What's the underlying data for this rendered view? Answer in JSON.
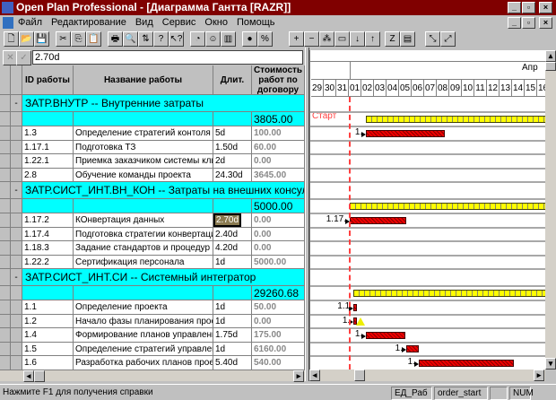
{
  "window": {
    "title": "Open Plan Professional - [Диаграмма Гантта [RAZR]]"
  },
  "menu": [
    "Файл",
    "Редактирование",
    "Вид",
    "Сервис",
    "Окно",
    "Помощь"
  ],
  "toolbar": {
    "icons": [
      "new-icon",
      "open-icon",
      "save-icon",
      "cut-icon",
      "copy-icon",
      "paste-icon",
      "print-icon",
      "print-preview-icon",
      "sort-icon",
      "help-icon",
      "context-help-icon",
      "clock-icon",
      "resource-icon",
      "histogram-icon",
      "progress-icon",
      "percent-icon",
      "add-icon",
      "remove-icon",
      "link-icon",
      "unlink-icon",
      "down-icon",
      "up-icon",
      "bar-style-icon",
      "table-icon",
      "zoom-in-icon",
      "zoom-out-icon"
    ]
  },
  "editbar": {
    "value": "2.70d"
  },
  "columns": {
    "id": "ID работы",
    "name": "Название работы",
    "dur": "Длит.",
    "cost": "Стоимость работ по договору"
  },
  "groups": [
    {
      "title": "ЗАТР.ВНУТР -- Внутренние затраты",
      "total": "3805.00",
      "bar": {
        "start": 2.3,
        "end": 99
      },
      "tasks": [
        {
          "id": "1.3",
          "name": "Определение стратегий контоля и отч",
          "dur": "5d",
          "cost": "100.00",
          "bar": {
            "start": 2.3,
            "end": 8.6
          },
          "label": "1."
        },
        {
          "id": "1.17.1",
          "name": "Подготовка ТЗ",
          "dur": "1.50d",
          "cost": "60.00"
        },
        {
          "id": "1.22.1",
          "name": "Приемка заказчиком системы клиент",
          "dur": "2d",
          "cost": "0.00"
        },
        {
          "id": "2.8",
          "name": "Обучение команды проекта",
          "dur": "24.30d",
          "cost": "3645.00"
        }
      ]
    },
    {
      "title": "ЗАТР.СИСТ_ИНТ.ВН_КОН -- Затраты на внешних консультантов",
      "total": "5000.00",
      "bar": {
        "start": 1.0,
        "end": 99
      },
      "tasks": [
        {
          "id": "1.17.2",
          "name": "КОнвертация данных",
          "dur": "2.70d",
          "cost": "0.00",
          "selected": true,
          "bar": {
            "start": 1.0,
            "end": 5.5
          },
          "label": "1.17."
        },
        {
          "id": "1.17.4",
          "name": "Подготовка стратегии конвертации",
          "dur": "2.40d",
          "cost": "0.00"
        },
        {
          "id": "1.18.3",
          "name": "Задание стандартов  и процедур по д",
          "dur": "4.20d",
          "cost": "0.00"
        },
        {
          "id": "1.22.2",
          "name": "Сертификация персонала",
          "dur": "1d",
          "cost": "5000.00"
        }
      ]
    },
    {
      "title": "ЗАТР.СИСТ_ИНТ.СИ -- Системный интегратор",
      "total": "29260.68",
      "bar": {
        "start": 1.3,
        "end": 99
      },
      "tasks": [
        {
          "id": "1.1",
          "name": "Определение проекта",
          "dur": "1d",
          "cost": "50.00",
          "bar": {
            "start": 1.3,
            "end": 1.6
          },
          "label": "1.1"
        },
        {
          "id": "1.2",
          "name": "Начало фазы планирования проекта",
          "dur": "1d",
          "cost": "0.00",
          "bar": {
            "start": 1.3,
            "end": 1.6
          },
          "milestone": true,
          "label": "1."
        },
        {
          "id": "1.4",
          "name": "Формирование планов управления",
          "dur": "1.75d",
          "cost": "175.00",
          "bar": {
            "start": 2.3,
            "end": 5.4
          },
          "label": "1."
        },
        {
          "id": "1.5",
          "name": "Определение стратегий управления р",
          "dur": "1d",
          "cost": "6160.00",
          "bar": {
            "start": 5.5,
            "end": 6.5
          },
          "label": "1."
        },
        {
          "id": "1.6",
          "name": "Разработка рабочих планов проекта",
          "dur": "5.40d",
          "cost": "540.00",
          "bar": {
            "start": 6.5,
            "end": 14.1
          },
          "label": "1."
        }
      ]
    }
  ],
  "gantt": {
    "month": "Апр",
    "days": [
      "29",
      "30",
      "31",
      "01",
      "02",
      "03",
      "04",
      "05",
      "06",
      "07",
      "08",
      "09",
      "10",
      "11",
      "12",
      "13",
      "14",
      "15",
      "16"
    ],
    "start_label": "Старт",
    "colors": {
      "task": "#e00000",
      "summary": "#ffff00",
      "start_line": "#ff4040",
      "group_row": "#00ffff"
    }
  },
  "status": {
    "help": "Нажмите F1 для получения справки",
    "unit": "ЕД_Раб",
    "sort": "order_start",
    "num": "NUM"
  }
}
